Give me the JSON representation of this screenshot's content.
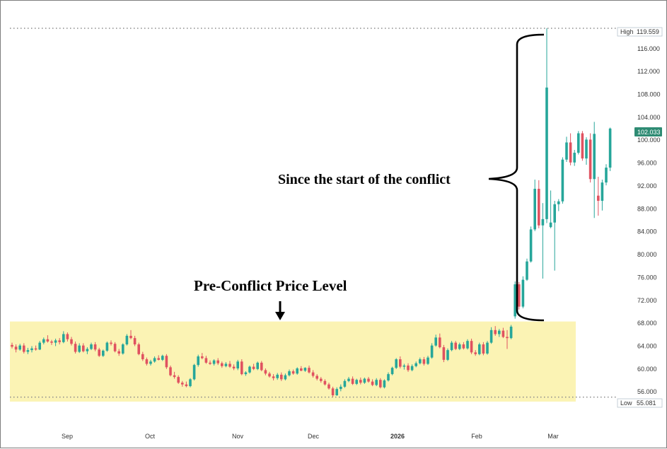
{
  "chart_data": {
    "type": "candlestick",
    "colors": {
      "up": "#26a69a",
      "down": "#e05260",
      "band": "#fbf3b4",
      "badge": "#2e8b73"
    },
    "x_labels": [
      "Sep",
      "Oct",
      "Nov",
      "Dec",
      "2026",
      "Feb",
      "Mar"
    ],
    "y_ticks": [
      "56.000",
      "60.000",
      "64.000",
      "68.000",
      "72.000",
      "76.000",
      "80.000",
      "84.000",
      "88.000",
      "92.000",
      "96.000",
      "100.000",
      "104.000",
      "108.000",
      "112.000",
      "116.000"
    ],
    "ylim": [
      54,
      120
    ],
    "high": {
      "label": "High",
      "value": "119.559"
    },
    "low": {
      "label": "Low",
      "value": "55.081"
    },
    "last_price": "102.033",
    "band_range": [
      54.3,
      68.3
    ],
    "annotations": {
      "pre_conflict": "Pre-Conflict Price Level",
      "since_conflict": "Since the start of the conflict"
    },
    "candles": [
      [
        64.2,
        64.6,
        63.6,
        63.9
      ],
      [
        63.9,
        64.3,
        62.9,
        63.4
      ],
      [
        63.4,
        64.4,
        63.2,
        64.1
      ],
      [
        64.1,
        64.5,
        62.7,
        63.0
      ],
      [
        63.0,
        63.7,
        62.6,
        63.3
      ],
      [
        63.3,
        64.0,
        62.9,
        63.6
      ],
      [
        63.6,
        64.1,
        63.2,
        63.4
      ],
      [
        63.4,
        64.9,
        63.3,
        64.6
      ],
      [
        64.6,
        65.5,
        64.3,
        65.2
      ],
      [
        65.2,
        65.9,
        64.6,
        64.8
      ],
      [
        64.8,
        65.1,
        64.2,
        64.6
      ],
      [
        64.6,
        65.3,
        64.0,
        65.0
      ],
      [
        65.0,
        65.4,
        64.3,
        64.7
      ],
      [
        64.7,
        66.6,
        64.5,
        66.1
      ],
      [
        66.1,
        66.4,
        64.8,
        65.2
      ],
      [
        65.2,
        65.6,
        64.1,
        64.4
      ],
      [
        64.4,
        64.8,
        62.7,
        63.0
      ],
      [
        63.0,
        64.5,
        62.8,
        64.1
      ],
      [
        64.1,
        64.5,
        62.9,
        63.1
      ],
      [
        63.1,
        63.8,
        62.6,
        63.5
      ],
      [
        63.5,
        64.6,
        63.3,
        64.3
      ],
      [
        64.3,
        64.7,
        63.1,
        63.4
      ],
      [
        63.4,
        63.7,
        62.1,
        62.3
      ],
      [
        62.3,
        63.4,
        62.1,
        63.2
      ],
      [
        63.2,
        64.8,
        63.0,
        64.6
      ],
      [
        64.6,
        65.0,
        64.1,
        64.4
      ],
      [
        64.4,
        64.7,
        62.9,
        63.1
      ],
      [
        63.1,
        63.5,
        62.3,
        62.7
      ],
      [
        62.7,
        64.5,
        62.5,
        64.3
      ],
      [
        64.3,
        66.1,
        64.1,
        65.8
      ],
      [
        65.8,
        66.8,
        65.2,
        65.4
      ],
      [
        65.4,
        65.8,
        64.0,
        64.3
      ],
      [
        64.3,
        64.6,
        62.4,
        62.6
      ],
      [
        62.6,
        63.0,
        61.4,
        61.7
      ],
      [
        61.7,
        62.0,
        60.6,
        60.9
      ],
      [
        60.9,
        61.6,
        60.6,
        61.3
      ],
      [
        61.3,
        62.2,
        61.1,
        61.9
      ],
      [
        61.9,
        62.4,
        61.5,
        61.6
      ],
      [
        61.6,
        62.5,
        61.4,
        62.3
      ],
      [
        62.3,
        62.6,
        60.0,
        60.3
      ],
      [
        60.3,
        60.6,
        58.7,
        58.9
      ],
      [
        58.9,
        59.5,
        58.3,
        58.6
      ],
      [
        58.6,
        58.9,
        57.4,
        57.6
      ],
      [
        57.6,
        57.9,
        56.9,
        57.3
      ],
      [
        57.3,
        57.8,
        56.8,
        57.0
      ],
      [
        57.0,
        58.4,
        56.8,
        58.2
      ],
      [
        58.2,
        60.9,
        58.0,
        60.7
      ],
      [
        60.7,
        62.5,
        60.4,
        62.2
      ],
      [
        62.2,
        62.8,
        61.7,
        61.9
      ],
      [
        61.9,
        62.3,
        60.9,
        61.1
      ],
      [
        61.1,
        61.5,
        60.7,
        60.9
      ],
      [
        60.9,
        61.7,
        60.6,
        61.5
      ],
      [
        61.5,
        61.9,
        60.7,
        61.0
      ],
      [
        61.0,
        61.3,
        60.2,
        60.5
      ],
      [
        60.5,
        61.2,
        60.3,
        60.9
      ],
      [
        60.9,
        61.4,
        60.2,
        60.4
      ],
      [
        60.4,
        60.8,
        59.8,
        60.1
      ],
      [
        60.1,
        61.6,
        59.8,
        61.3
      ],
      [
        61.3,
        61.7,
        58.9,
        59.1
      ],
      [
        59.1,
        59.6,
        58.8,
        59.4
      ],
      [
        59.4,
        60.6,
        59.2,
        60.4
      ],
      [
        60.4,
        60.9,
        59.8,
        60.0
      ],
      [
        60.0,
        61.3,
        59.8,
        61.1
      ],
      [
        61.1,
        61.4,
        59.6,
        59.8
      ],
      [
        59.8,
        60.1,
        58.9,
        59.2
      ],
      [
        59.2,
        59.5,
        58.5,
        58.7
      ],
      [
        58.7,
        59.1,
        58.0,
        58.4
      ],
      [
        58.4,
        59.3,
        58.1,
        59.0
      ],
      [
        59.0,
        59.4,
        57.9,
        58.2
      ],
      [
        58.2,
        59.2,
        58.0,
        58.9
      ],
      [
        58.9,
        59.9,
        58.7,
        59.6
      ],
      [
        59.6,
        59.9,
        59.0,
        59.2
      ],
      [
        59.2,
        60.3,
        59.0,
        60.1
      ],
      [
        60.1,
        60.5,
        59.6,
        59.7
      ],
      [
        59.7,
        60.3,
        59.5,
        60.2
      ],
      [
        60.2,
        60.6,
        59.2,
        59.4
      ],
      [
        59.4,
        59.8,
        58.5,
        58.8
      ],
      [
        58.8,
        59.1,
        58.0,
        58.3
      ],
      [
        58.3,
        58.6,
        57.6,
        57.9
      ],
      [
        57.9,
        58.2,
        57.1,
        57.3
      ],
      [
        57.3,
        57.6,
        56.4,
        56.6
      ],
      [
        56.6,
        56.9,
        55.1,
        55.4
      ],
      [
        55.4,
        56.8,
        55.3,
        56.5
      ],
      [
        56.5,
        57.3,
        56.1,
        56.9
      ],
      [
        56.9,
        58.2,
        56.7,
        57.9
      ],
      [
        57.9,
        58.6,
        57.7,
        58.3
      ],
      [
        58.3,
        58.7,
        57.2,
        57.4
      ],
      [
        57.4,
        58.3,
        57.2,
        58.1
      ],
      [
        58.1,
        58.5,
        57.3,
        57.6
      ],
      [
        57.6,
        58.5,
        57.4,
        58.3
      ],
      [
        58.3,
        58.6,
        57.6,
        57.8
      ],
      [
        57.8,
        58.2,
        57.0,
        57.2
      ],
      [
        57.2,
        58.4,
        57.0,
        58.1
      ],
      [
        58.1,
        58.4,
        56.6,
        56.8
      ],
      [
        56.8,
        58.2,
        56.6,
        58.0
      ],
      [
        58.0,
        59.4,
        57.8,
        59.1
      ],
      [
        59.1,
        60.4,
        58.9,
        60.2
      ],
      [
        60.2,
        61.9,
        60.0,
        61.7
      ],
      [
        61.7,
        62.2,
        60.1,
        60.4
      ],
      [
        60.4,
        60.9,
        59.9,
        60.6
      ],
      [
        60.6,
        61.0,
        59.5,
        59.8
      ],
      [
        59.8,
        60.8,
        59.6,
        60.5
      ],
      [
        60.5,
        61.3,
        60.3,
        61.0
      ],
      [
        61.0,
        62.0,
        60.8,
        61.7
      ],
      [
        61.7,
        62.1,
        60.6,
        60.9
      ],
      [
        60.9,
        62.3,
        60.7,
        62.0
      ],
      [
        62.0,
        64.5,
        61.8,
        64.1
      ],
      [
        64.1,
        66.0,
        63.9,
        65.5
      ],
      [
        65.5,
        66.2,
        63.6,
        63.8
      ],
      [
        63.8,
        64.2,
        61.2,
        61.6
      ],
      [
        61.6,
        63.6,
        61.4,
        63.3
      ],
      [
        63.3,
        64.9,
        63.1,
        64.6
      ],
      [
        64.6,
        64.9,
        63.3,
        63.5
      ],
      [
        63.5,
        64.6,
        63.3,
        64.3
      ],
      [
        64.3,
        64.7,
        63.4,
        63.6
      ],
      [
        63.6,
        65.2,
        63.4,
        64.9
      ],
      [
        64.9,
        65.3,
        62.6,
        62.9
      ],
      [
        62.9,
        63.3,
        62.3,
        62.6
      ],
      [
        62.6,
        64.6,
        62.4,
        64.3
      ],
      [
        64.3,
        64.7,
        62.4,
        62.7
      ],
      [
        62.7,
        64.9,
        62.5,
        64.6
      ],
      [
        64.6,
        67.3,
        64.4,
        66.8
      ],
      [
        66.8,
        67.5,
        65.8,
        66.1
      ],
      [
        66.1,
        67.0,
        65.6,
        66.7
      ],
      [
        66.7,
        67.2,
        65.4,
        65.6
      ],
      [
        65.6,
        66.8,
        63.5,
        65.4
      ],
      [
        65.4,
        67.7,
        65.2,
        67.4
      ],
      [
        69.2,
        75.3,
        68.8,
        74.8
      ],
      [
        74.8,
        75.2,
        70.4,
        70.9
      ],
      [
        70.9,
        76.2,
        70.6,
        75.6
      ],
      [
        75.6,
        79.3,
        75.4,
        78.8
      ],
      [
        78.8,
        84.9,
        78.6,
        84.4
      ],
      [
        84.4,
        93.1,
        84.1,
        91.5
      ],
      [
        91.5,
        93.0,
        84.6,
        85.1
      ],
      [
        85.1,
        89.0,
        75.8,
        86.2
      ],
      [
        86.2,
        119.559,
        85.5,
        109.2
      ],
      [
        84.8,
        91.2,
        84.6,
        85.6
      ],
      [
        85.6,
        89.4,
        77.2,
        88.8
      ],
      [
        88.8,
        89.7,
        87.6,
        89.3
      ],
      [
        89.3,
        97.0,
        88.9,
        96.6
      ],
      [
        96.6,
        100.6,
        96.2,
        99.6
      ],
      [
        99.6,
        101.2,
        95.6,
        96.1
      ],
      [
        96.1,
        98.3,
        95.5,
        97.8
      ],
      [
        97.8,
        101.6,
        97.5,
        101.2
      ],
      [
        101.2,
        101.6,
        96.4,
        96.8
      ],
      [
        96.8,
        100.5,
        95.7,
        100.1
      ],
      [
        100.1,
        101.2,
        92.6,
        93.2
      ],
      [
        93.2,
        103.2,
        86.4,
        101.1
      ],
      [
        90.3,
        93.6,
        86.8,
        89.4
      ],
      [
        89.4,
        93.1,
        87.7,
        92.6
      ],
      [
        92.6,
        95.8,
        92.1,
        95.2
      ],
      [
        95.2,
        102.2,
        94.6,
        102.033
      ]
    ]
  }
}
